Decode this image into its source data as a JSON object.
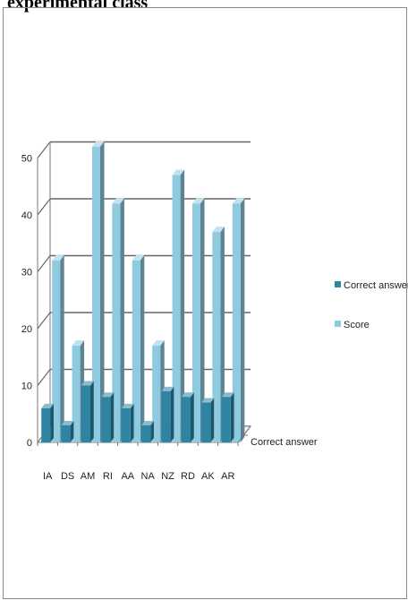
{
  "page": {
    "title_fragment": "experimental class"
  },
  "chart_data": {
    "type": "bar",
    "categories": [
      "IA",
      "DS",
      "AM",
      "RI",
      "AA",
      "NA",
      "NZ",
      "RD",
      "AK",
      "AR"
    ],
    "series": [
      {
        "name": "Correct answer",
        "values": [
          6,
          3,
          10,
          8,
          6,
          3,
          9,
          8,
          7,
          8
        ],
        "color": "#2e84a3"
      },
      {
        "name": "Score",
        "values": [
          32,
          17,
          52,
          42,
          32,
          17,
          47,
          42,
          37,
          42
        ],
        "color": "#8ecbe0"
      }
    ],
    "depth_axis_label": "Correct answer",
    "ylim": [
      0,
      50
    ],
    "yticks": [
      0,
      10,
      20,
      30,
      40,
      50
    ],
    "grid": true,
    "legend_position": "right"
  }
}
